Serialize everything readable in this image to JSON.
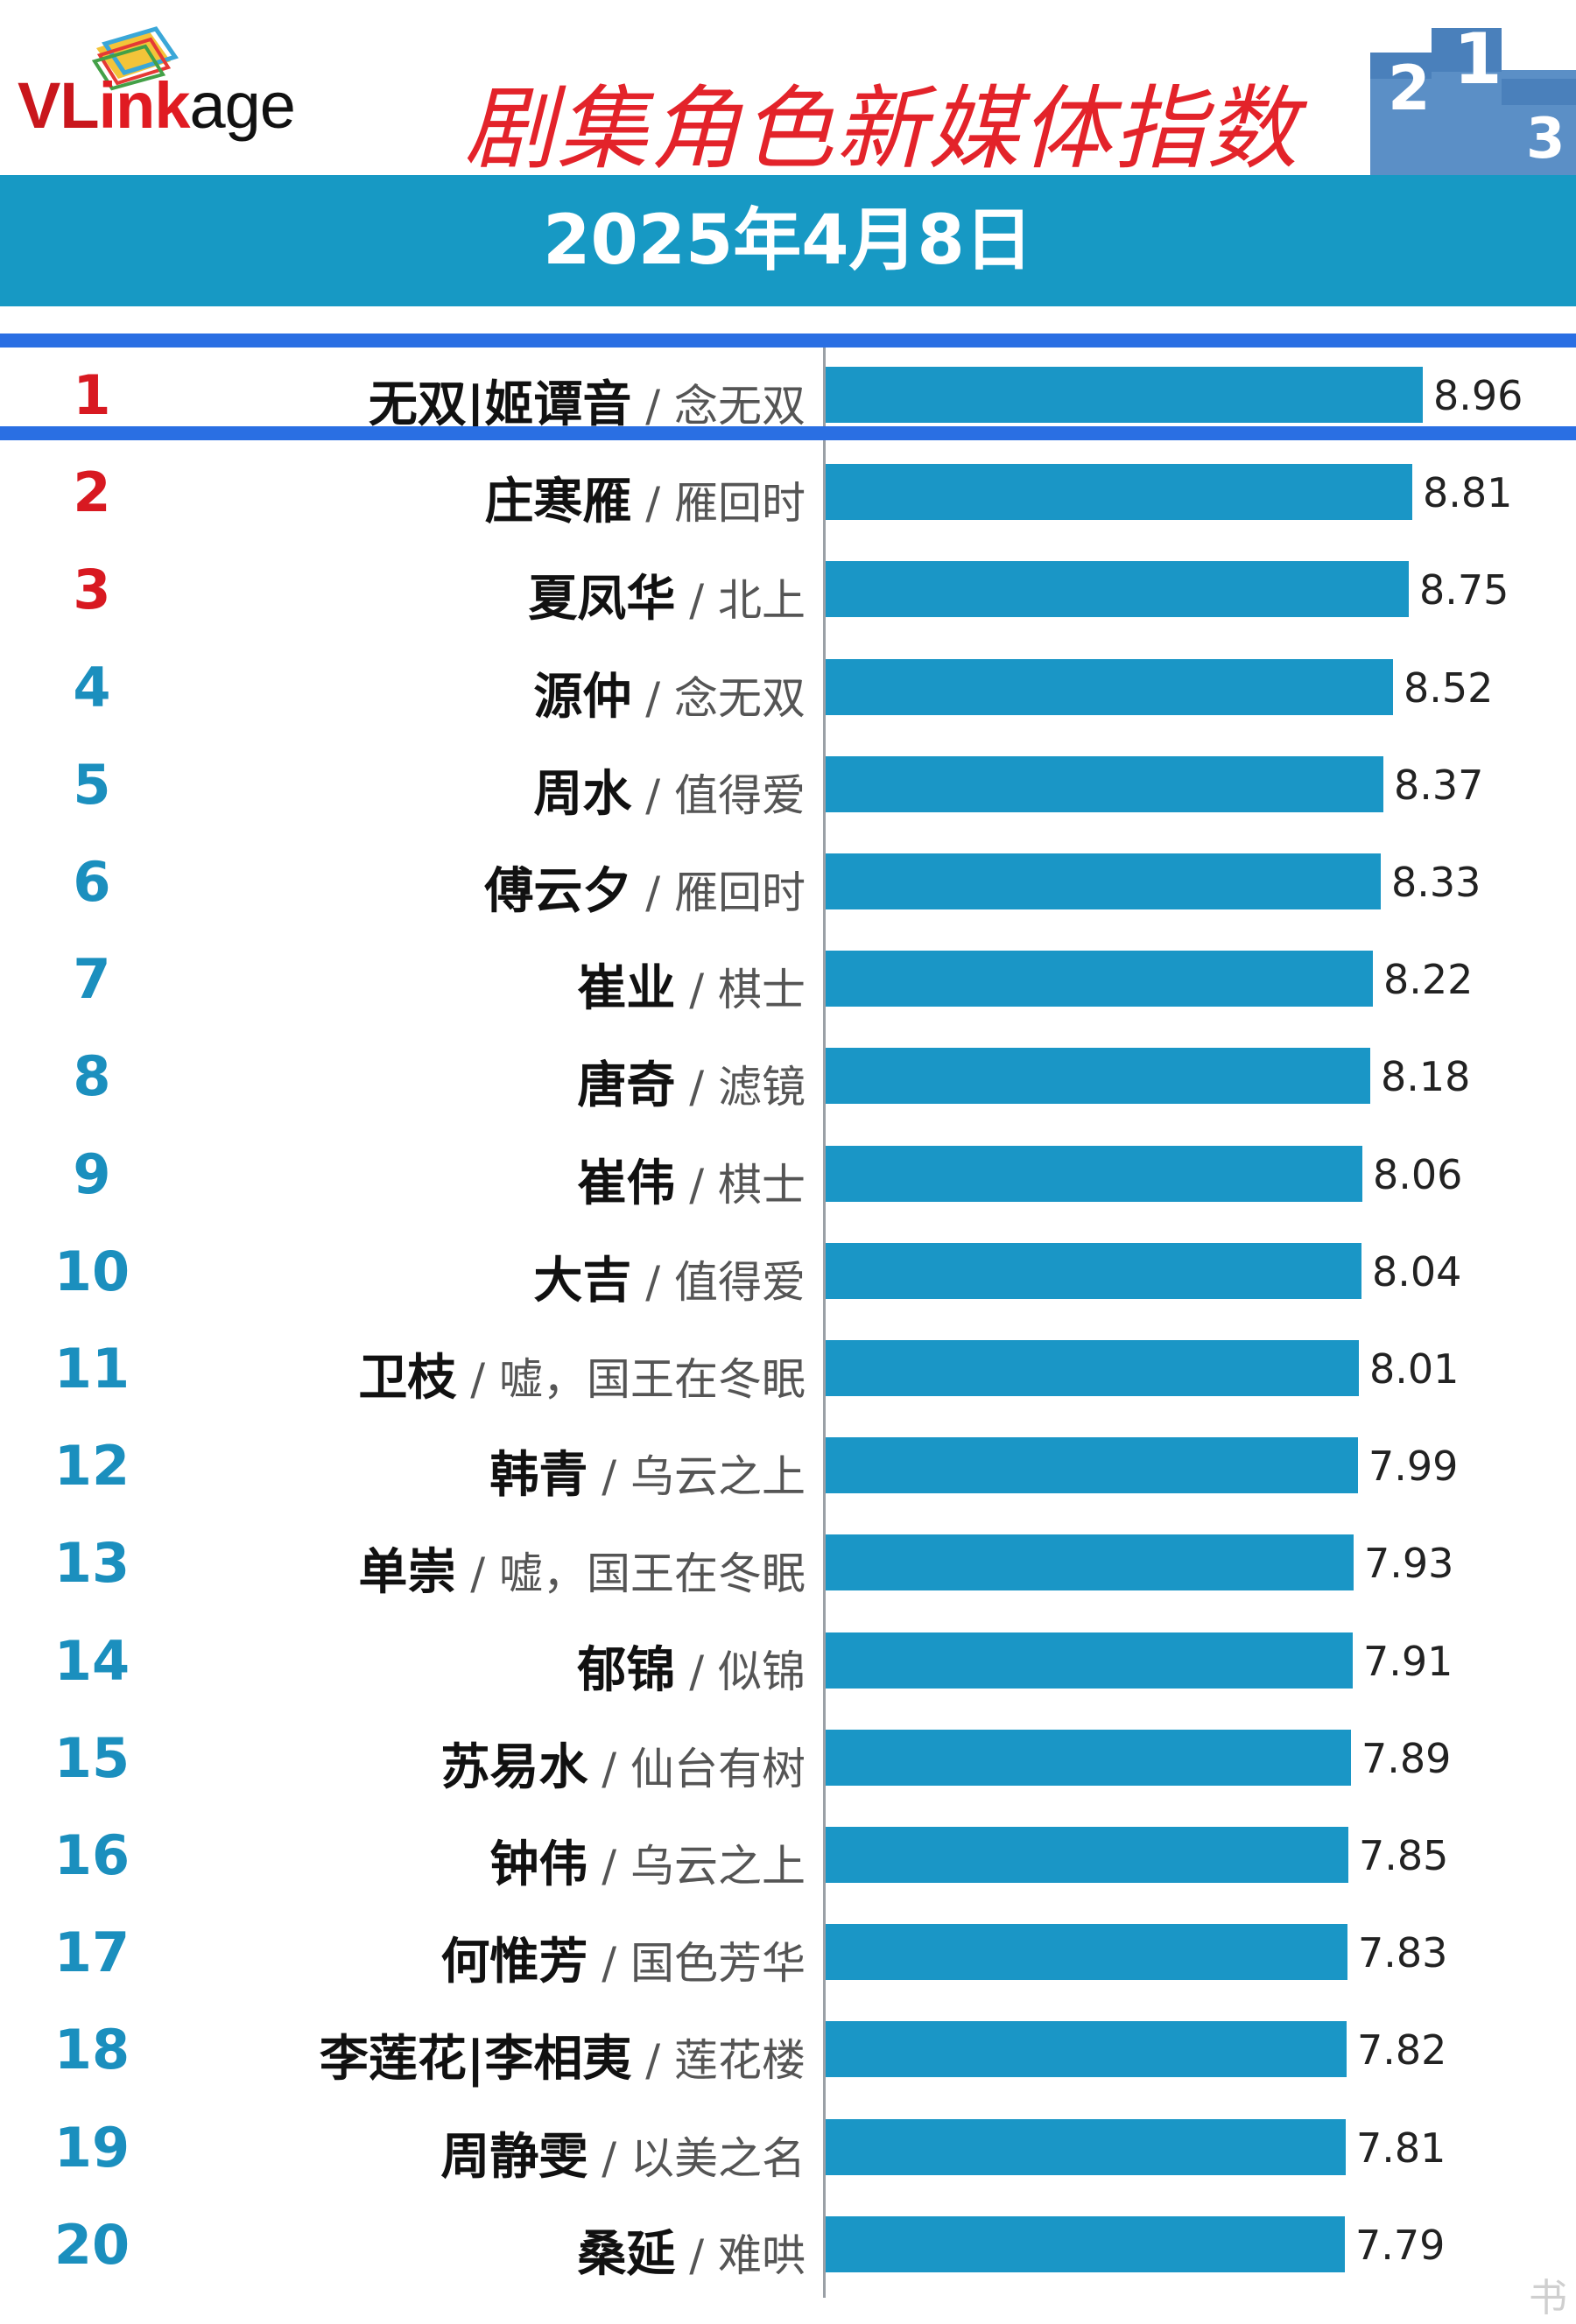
{
  "brand": {
    "prefix": "VL",
    "ink": "ink",
    "suffix": "age"
  },
  "title": "剧集角色新媒体指数",
  "date": "2025年4月8日",
  "watermark": "书",
  "chart_data": {
    "type": "bar",
    "orientation": "horizontal",
    "title": "剧集角色新媒体指数",
    "subtitle": "2025年4月8日",
    "xlim": [
      0,
      9.2
    ],
    "highlighted_rank": 1,
    "rows": [
      {
        "rank": "1",
        "name": "无双|姬谭音",
        "show": "念无双",
        "value": 8.96,
        "label": "8.96"
      },
      {
        "rank": "2",
        "name": "庄寒雁",
        "show": "雁回时",
        "value": 8.81,
        "label": "8.81"
      },
      {
        "rank": "3",
        "name": "夏凤华",
        "show": "北上",
        "value": 8.75,
        "label": "8.75"
      },
      {
        "rank": "4",
        "name": "源仲",
        "show": "念无双",
        "value": 8.52,
        "label": "8.52"
      },
      {
        "rank": "5",
        "name": "周水",
        "show": "值得爱",
        "value": 8.37,
        "label": "8.37"
      },
      {
        "rank": "6",
        "name": "傅云夕",
        "show": "雁回时",
        "value": 8.33,
        "label": "8.33"
      },
      {
        "rank": "7",
        "name": "崔业",
        "show": "棋士",
        "value": 8.22,
        "label": "8.22"
      },
      {
        "rank": "8",
        "name": "唐奇",
        "show": "滤镜",
        "value": 8.18,
        "label": "8.18"
      },
      {
        "rank": "9",
        "name": "崔伟",
        "show": "棋士",
        "value": 8.06,
        "label": "8.06"
      },
      {
        "rank": "10",
        "name": "大吉",
        "show": "值得爱",
        "value": 8.04,
        "label": "8.04"
      },
      {
        "rank": "11",
        "name": "卫枝",
        "show": "嘘，国王在冬眠",
        "value": 8.01,
        "label": "8.01"
      },
      {
        "rank": "12",
        "name": "韩青",
        "show": "乌云之上",
        "value": 7.99,
        "label": "7.99"
      },
      {
        "rank": "13",
        "name": "单崇",
        "show": "嘘，国王在冬眠",
        "value": 7.93,
        "label": "7.93"
      },
      {
        "rank": "14",
        "name": "郁锦",
        "show": "似锦",
        "value": 7.91,
        "label": "7.91"
      },
      {
        "rank": "15",
        "name": "苏易水",
        "show": "仙台有树",
        "value": 7.89,
        "label": "7.89"
      },
      {
        "rank": "16",
        "name": "钟伟",
        "show": "乌云之上",
        "value": 7.85,
        "label": "7.85"
      },
      {
        "rank": "17",
        "name": "何惟芳",
        "show": "国色芳华",
        "value": 7.83,
        "label": "7.83"
      },
      {
        "rank": "18",
        "name": "李莲花|李相夷",
        "show": "莲花楼",
        "value": 7.82,
        "label": "7.82"
      },
      {
        "rank": "19",
        "name": "周静雯",
        "show": "以美之名",
        "value": 7.81,
        "label": "7.81"
      },
      {
        "rank": "20",
        "name": "桑延",
        "show": "难哄",
        "value": 7.79,
        "label": "7.79"
      }
    ]
  }
}
